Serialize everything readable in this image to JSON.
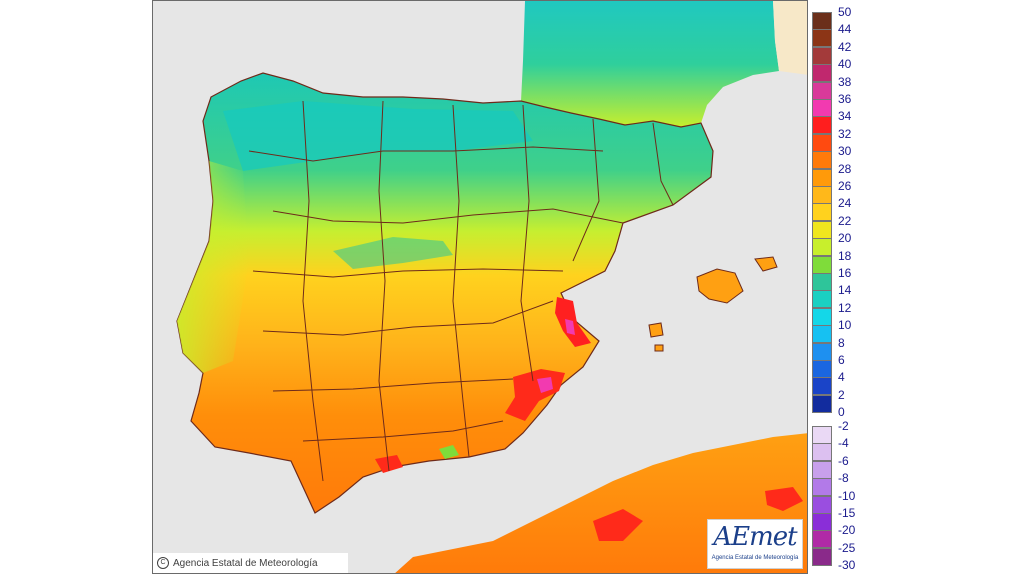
{
  "map": {
    "copyright": "Agencia Estatal de Meteorología",
    "logo_text": "AEmet",
    "logo_subtext": "Agencia Estatal de Meteorología"
  },
  "legend": {
    "positive": [
      {
        "label": "50",
        "color": "#6b2f1a"
      },
      {
        "label": "44",
        "color": "#8c3516"
      },
      {
        "label": "42",
        "color": "#a33a3a"
      },
      {
        "label": "40",
        "color": "#c0286e"
      },
      {
        "label": "38",
        "color": "#d93a9a"
      },
      {
        "label": "36",
        "color": "#f23ab0"
      },
      {
        "label": "34",
        "color": "#ff1e1e"
      },
      {
        "label": "32",
        "color": "#ff4a10"
      },
      {
        "label": "30",
        "color": "#ff7a0a"
      },
      {
        "label": "28",
        "color": "#ff9a0a"
      },
      {
        "label": "26",
        "color": "#ffb81a"
      },
      {
        "label": "24",
        "color": "#ffd21e"
      },
      {
        "label": "22",
        "color": "#f0e61e"
      },
      {
        "label": "20",
        "color": "#c8ef2c"
      },
      {
        "label": "18",
        "color": "#7fdc3a"
      },
      {
        "label": "16",
        "color": "#2ec59a"
      },
      {
        "label": "14",
        "color": "#1ad0c2"
      },
      {
        "label": "12",
        "color": "#14d7e8"
      },
      {
        "label": "10",
        "color": "#16c1f2"
      },
      {
        "label": "8",
        "color": "#1e90f0"
      },
      {
        "label": "6",
        "color": "#1a66e0"
      },
      {
        "label": "4",
        "color": "#1a44c8"
      },
      {
        "label": "2",
        "color": "#122c9e"
      },
      {
        "label": "0",
        "color": "#0a1670"
      }
    ],
    "negative": [
      {
        "label": "-2",
        "color": "#ead9f5"
      },
      {
        "label": "-4",
        "color": "#dcc0f0"
      },
      {
        "label": "-6",
        "color": "#c8a0ec"
      },
      {
        "label": "-8",
        "color": "#b27ae8"
      },
      {
        "label": "-10",
        "color": "#9a4ee0"
      },
      {
        "label": "-15",
        "color": "#8a2ed8"
      },
      {
        "label": "-20",
        "color": "#b02aa6"
      },
      {
        "label": "-25",
        "color": "#8a2a8a"
      },
      {
        "label": "-30",
        "color": "#6a1e6a"
      }
    ]
  }
}
